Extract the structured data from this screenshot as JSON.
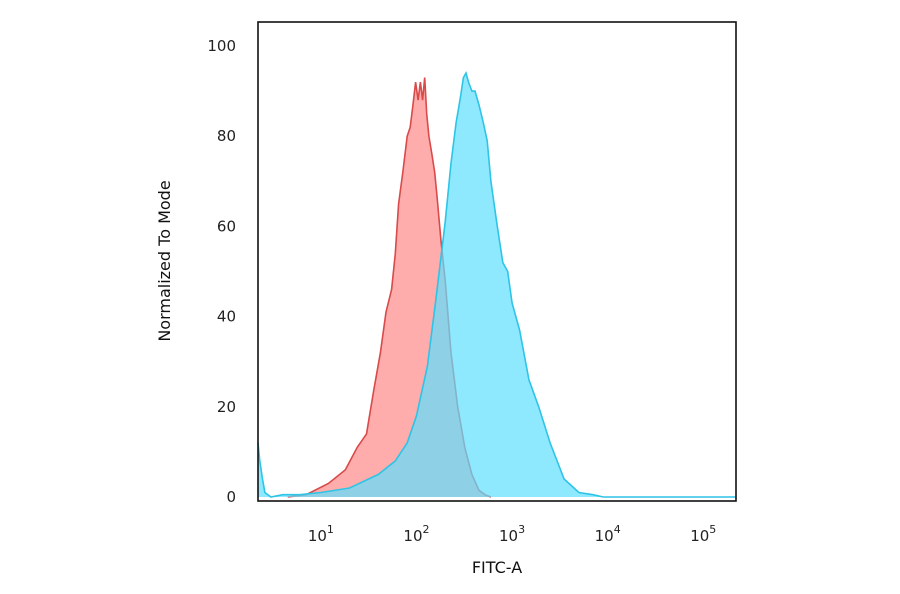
{
  "chart_data": {
    "type": "area",
    "title": "",
    "xlabel": "FITC-A",
    "ylabel": "Normalized To Mode",
    "x_scale": "log",
    "xlim": [
      2.2,
      220000
    ],
    "ylim": [
      0,
      100
    ],
    "x_ticks": [
      {
        "value": 10,
        "base": "10",
        "exp": "1"
      },
      {
        "value": 100,
        "base": "10",
        "exp": "2"
      },
      {
        "value": 1000,
        "base": "10",
        "exp": "3"
      },
      {
        "value": 10000,
        "base": "10",
        "exp": "4"
      },
      {
        "value": 100000,
        "base": "10",
        "exp": "5"
      }
    ],
    "y_ticks": [
      {
        "value": 0,
        "label": "0"
      },
      {
        "value": 20,
        "label": "20"
      },
      {
        "value": 40,
        "label": "40"
      },
      {
        "value": 60,
        "label": "60"
      },
      {
        "value": 80,
        "label": "80"
      },
      {
        "value": 100,
        "label": "100"
      }
    ],
    "grid": false,
    "legend": "none",
    "series": [
      {
        "color": "#d94a4a",
        "fill": "#ff8080",
        "fill_opacity": 0.65,
        "x": [
          4.5,
          7.0,
          12,
          18,
          24,
          30,
          36,
          42,
          48,
          55,
          60,
          65,
          72,
          80,
          86,
          92,
          98,
          104,
          110,
          116,
          122,
          128,
          135,
          145,
          155,
          165,
          180,
          200,
          230,
          270,
          320,
          380,
          450,
          520,
          600
        ],
        "y": [
          0,
          0.5,
          3,
          6,
          11,
          14,
          24,
          32,
          41,
          46,
          54,
          65,
          72,
          80,
          82,
          87,
          92,
          88,
          92,
          88,
          93,
          85,
          80,
          76,
          72,
          66,
          57,
          48,
          32,
          20,
          11,
          5,
          1.5,
          0.5,
          0
        ]
      },
      {
        "color": "#2ec4e6",
        "fill": "#5ee0ff",
        "fill_opacity": 0.7,
        "x": [
          2.2,
          2.3,
          2.45,
          2.6,
          3.0,
          4.0,
          6.0,
          10,
          20,
          40,
          60,
          80,
          100,
          130,
          160,
          200,
          230,
          260,
          290,
          310,
          330,
          350,
          380,
          410,
          450,
          500,
          550,
          600,
          700,
          800,
          900,
          1000,
          1200,
          1500,
          1900,
          2500,
          3500,
          5000,
          7000,
          9000,
          20000,
          100000,
          220000
        ],
        "y": [
          12,
          8,
          4,
          1,
          0,
          0.5,
          0.5,
          1,
          2,
          5,
          8,
          12,
          18,
          29,
          44,
          61,
          74,
          83,
          89,
          93,
          94,
          92,
          90,
          90,
          87,
          83,
          79,
          70,
          60,
          52,
          50,
          43,
          37,
          26,
          20,
          12,
          4,
          1,
          0.5,
          0,
          0,
          0,
          0
        ]
      }
    ]
  }
}
